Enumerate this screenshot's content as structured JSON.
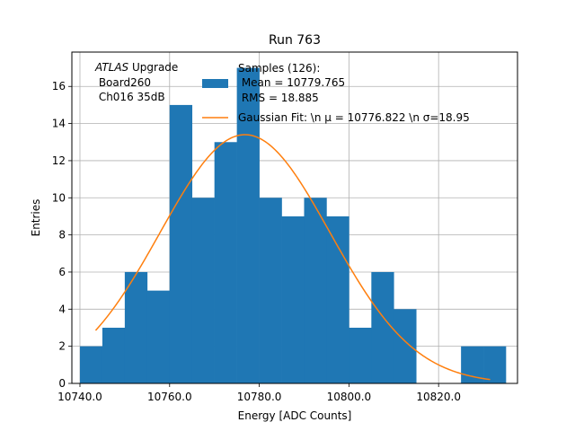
{
  "chart_data": {
    "type": "bar",
    "title": "Run 763",
    "xlabel": "Energy [ADC Counts]",
    "ylabel": "Entries",
    "xlim": [
      10738.2,
      10837.6
    ],
    "ylim": [
      0,
      17.85
    ],
    "xticks": [
      10740,
      10760,
      10780,
      10800,
      10820
    ],
    "xtick_labels": [
      "10740.0",
      "10760.0",
      "10780.0",
      "10800.0",
      "10820.0"
    ],
    "yticks": [
      0,
      2,
      4,
      6,
      8,
      10,
      12,
      14,
      16
    ],
    "ytick_labels": [
      "0",
      "2",
      "4",
      "6",
      "8",
      "10",
      "12",
      "14",
      "16"
    ],
    "grid": true,
    "bin_edges": [
      10740.0,
      10745.0,
      10750.0,
      10755.0,
      10760.0,
      10765.0,
      10770.0,
      10775.0,
      10780.0,
      10785.0,
      10790.0,
      10795.0,
      10800.0,
      10805.0,
      10810.0,
      10815.0,
      10820.0,
      10825.0,
      10830.0,
      10835.0
    ],
    "counts": [
      2,
      3,
      6,
      5,
      15,
      10,
      13,
      17,
      10,
      9,
      10,
      9,
      3,
      6,
      4,
      0,
      0,
      2,
      2
    ],
    "fit": {
      "mean": 10776.822,
      "sigma": 18.95,
      "amplitude": 13.4,
      "x_range": [
        10743.5,
        10831.5
      ]
    },
    "annotation": {
      "italic": "ATLAS",
      "line1_rest": " Upgrade",
      "line2": " Board260",
      "line3": " Ch016 35dB"
    },
    "legend": {
      "position": "top-center",
      "hist_line1": "Samples (126):",
      "hist_line2": " Mean = 10779.765",
      "hist_line3": " RMS = 18.885",
      "fit_label": "Gaussian Fit: \\n μ = 10776.822 \\n σ=18.95"
    },
    "colors": {
      "bars": "#1f77b4",
      "fit": "#ff7f0e",
      "grid": "#b0b0b0"
    }
  }
}
